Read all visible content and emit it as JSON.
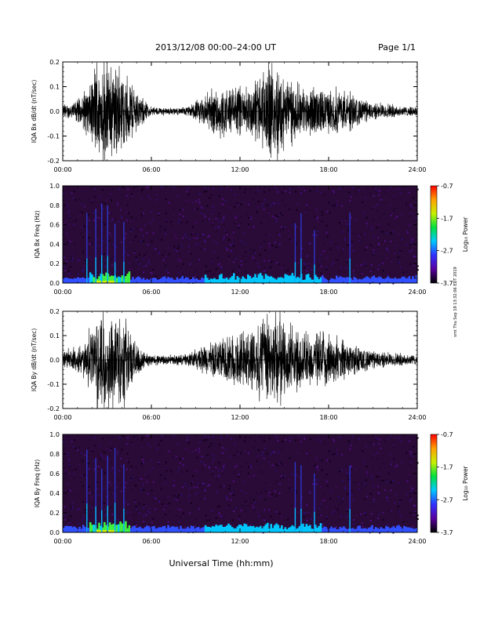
{
  "header": {
    "title": "2013/12/08   00:00–24:00 UT",
    "page": "Page 1/1"
  },
  "side_note": "smt Thu Sep 19 13:32:06 EDT 2019",
  "xlabel": "Universal Time (hh:mm)",
  "colors": {
    "background": "#ffffff",
    "trace": "#000000",
    "spec_background": "#2a0a36",
    "colorbar": [
      "#000000",
      "#5a00a0",
      "#3030ff",
      "#00c8ff",
      "#00e040",
      "#c8f000",
      "#ffa000",
      "#ff0000"
    ]
  },
  "chart_data": [
    {
      "type": "line",
      "name": "bx-waveform",
      "ylabel": "IQA Bx dB/dt (nT/sec)",
      "xticks": [
        "00:00",
        "06:00",
        "12:00",
        "18:00",
        "24:00"
      ],
      "yticks": [
        "0.2",
        "0.1",
        "0.0",
        "-0.1",
        "-0.2"
      ],
      "xlim": [
        0,
        24
      ],
      "ylim": [
        -0.2,
        0.2
      ],
      "envelope": {
        "x": [
          0,
          0.5,
          1.0,
          1.5,
          2.0,
          2.3,
          2.8,
          3.3,
          3.8,
          4.3,
          4.8,
          5.3,
          6.0,
          7.0,
          8.0,
          8.5,
          9.0,
          9.5,
          10.0,
          10.5,
          11.0,
          11.5,
          12.0,
          12.5,
          13.0,
          13.5,
          14.0,
          14.5,
          15.0,
          15.5,
          16.0,
          16.5,
          17.0,
          17.5,
          18.0,
          18.5,
          19.0,
          19.5,
          20.0,
          20.5,
          21.0,
          22.0,
          23.0,
          24.0
        ],
        "amplitude": [
          0.03,
          0.035,
          0.05,
          0.08,
          0.15,
          0.2,
          0.2,
          0.2,
          0.2,
          0.14,
          0.1,
          0.06,
          0.02,
          0.015,
          0.015,
          0.02,
          0.04,
          0.07,
          0.09,
          0.11,
          0.1,
          0.09,
          0.12,
          0.11,
          0.13,
          0.15,
          0.2,
          0.2,
          0.15,
          0.13,
          0.1,
          0.09,
          0.11,
          0.09,
          0.08,
          0.1,
          0.09,
          0.08,
          0.06,
          0.05,
          0.035,
          0.03,
          0.02,
          0.02
        ]
      }
    },
    {
      "type": "heatmap",
      "name": "bx-spectrogram",
      "ylabel": "IQA Bx Freq (Hz)",
      "xticks": [
        "00:00",
        "06:00",
        "12:00",
        "18:00",
        "24:00"
      ],
      "yticks": [
        "1.0",
        "0.8",
        "0.6",
        "0.4",
        "0.2",
        "0.0"
      ],
      "xlim": [
        0,
        24
      ],
      "ylim": [
        0,
        1.0
      ],
      "colorbar": {
        "label": "Log₁₀ Power",
        "ticks": [
          "-0.7",
          "-1.7",
          "-2.7",
          "-3.7"
        ],
        "range": [
          -3.7,
          -0.7
        ]
      },
      "strong_lines_hours": [
        1.6,
        2.2,
        2.6,
        3.0,
        3.5,
        4.1,
        15.7,
        16.1,
        17.0,
        19.4
      ]
    },
    {
      "type": "line",
      "name": "by-waveform",
      "ylabel": "IQA By dB/dt (nT/sec)",
      "xticks": [
        "00:00",
        "06:00",
        "12:00",
        "18:00",
        "24:00"
      ],
      "yticks": [
        "0.2",
        "0.1",
        "0.0",
        "-0.1",
        "-0.2"
      ],
      "xlim": [
        0,
        24
      ],
      "ylim": [
        -0.2,
        0.2
      ],
      "envelope": {
        "x": [
          0,
          0.5,
          1.0,
          1.5,
          2.0,
          2.3,
          2.8,
          3.3,
          3.8,
          4.3,
          4.8,
          5.3,
          6.0,
          7.0,
          8.0,
          8.5,
          9.0,
          9.5,
          10.0,
          10.5,
          11.0,
          11.5,
          12.0,
          12.5,
          13.0,
          13.5,
          14.0,
          14.5,
          15.0,
          15.5,
          16.0,
          16.5,
          17.0,
          17.5,
          18.0,
          18.5,
          19.0,
          19.5,
          20.0,
          20.5,
          21.0,
          22.0,
          23.0,
          24.0
        ],
        "amplitude": [
          0.04,
          0.05,
          0.06,
          0.08,
          0.14,
          0.2,
          0.2,
          0.2,
          0.2,
          0.17,
          0.1,
          0.05,
          0.02,
          0.02,
          0.02,
          0.03,
          0.04,
          0.06,
          0.07,
          0.09,
          0.1,
          0.11,
          0.12,
          0.13,
          0.15,
          0.18,
          0.2,
          0.2,
          0.16,
          0.14,
          0.12,
          0.12,
          0.11,
          0.12,
          0.1,
          0.1,
          0.08,
          0.07,
          0.06,
          0.05,
          0.04,
          0.03,
          0.025,
          0.02
        ]
      }
    },
    {
      "type": "heatmap",
      "name": "by-spectrogram",
      "ylabel": "IQA By Freq (Hz)",
      "xticks": [
        "00:00",
        "06:00",
        "12:00",
        "18:00",
        "24:00"
      ],
      "yticks": [
        "1.0",
        "0.8",
        "0.6",
        "0.4",
        "0.2",
        "0.0"
      ],
      "xlim": [
        0,
        24
      ],
      "ylim": [
        0,
        1.0
      ],
      "colorbar": {
        "label": "Log₁₀ Power",
        "ticks": [
          "-0.7",
          "-1.7",
          "-2.7",
          "-3.7"
        ],
        "range": [
          -3.7,
          -0.7
        ]
      },
      "strong_lines_hours": [
        1.6,
        2.2,
        2.6,
        3.0,
        3.5,
        4.1,
        15.7,
        16.1,
        17.0,
        19.4
      ]
    }
  ]
}
